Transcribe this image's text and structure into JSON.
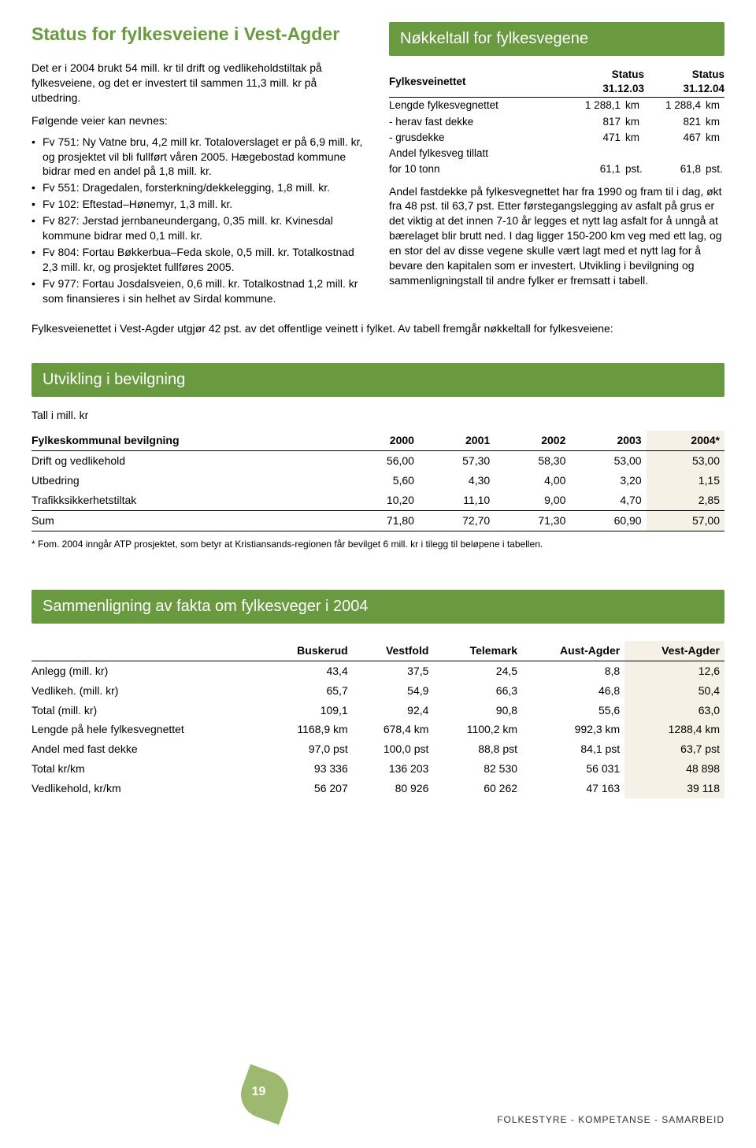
{
  "colors": {
    "accent": "#6a9a3f",
    "highlight": "#f5f1e6",
    "leaf": "#9cb96f"
  },
  "title": "Status for fylkesveiene i Vest-Agder",
  "intro": "Det er i 2004 brukt 54 mill. kr til drift og vedlikeholdstiltak på fylkesveiene, og det er investert til sammen 11,3 mill. kr på utbedring.",
  "lead_in": "Følgende veier kan nevnes:",
  "bullets": [
    "Fv 751: Ny Vatne bru, 4,2 mill kr. Totaloverslaget er på 6,9 mill. kr, og prosjektet vil bli fullført våren 2005. Hægebostad kommune bidrar med en andel på 1,8 mill. kr.",
    "Fv 551: Dragedalen, forsterkning/dekkelegging, 1,8 mill. kr.",
    "Fv 102: Eftestad–Hønemyr, 1,3 mill. kr.",
    "Fv 827: Jerstad jernbaneundergang, 0,35 mill. kr. Kvinesdal kommune bidrar med 0,1 mill. kr.",
    "Fv 804: Fortau Bøkkerbua–Feda skole, 0,5 mill. kr. Totalkostnad 2,3 mill. kr, og prosjektet fullføres 2005.",
    "Fv 977: Fortau Josdalsveien, 0,6 mill. kr. Totalkostnad 1,2 mill. kr som finansieres i sin helhet av Sirdal kommune."
  ],
  "after_bullets": "Fylkesveienettet i Vest-Agder utgjør 42 pst. av det offentlige veinett i fylket. Av tabell fremgår nøkkeltall for fylkesveiene:",
  "nokkel": {
    "title": "Nøkkeltall for fylkesvegene",
    "head": [
      "Fylkesveinettet",
      "Status 31.12.03",
      "Status 31.12.04"
    ],
    "rows": [
      {
        "label": "Lengde fylkesvegnettet",
        "v1": "1 288,1",
        "u1": "km",
        "v2": "1 288,4",
        "u2": "km"
      },
      {
        "label": "- herav fast dekke",
        "v1": "817",
        "u1": "km",
        "v2": "821",
        "u2": "km"
      },
      {
        "label": "- grusdekke",
        "v1": "471",
        "u1": "km",
        "v2": "467",
        "u2": "km"
      },
      {
        "label": "Andel fylkesveg tillatt",
        "v1": "",
        "u1": "",
        "v2": "",
        "u2": ""
      },
      {
        "label": "for 10 tonn",
        "v1": "61,1",
        "u1": "pst.",
        "v2": "61,8",
        "u2": "pst."
      }
    ],
    "para": "Andel fastdekke på fylkesvegnettet har fra 1990 og fram til i dag, økt fra 48 pst. til 63,7 pst. Etter førstegangslegging av asfalt på grus er det viktig at det innen 7-10 år legges et nytt lag asfalt for å unngå at bærelaget blir brutt ned. I dag ligger 150-200 km veg med ett lag, og en stor del av disse vegene skulle vært lagt med et nytt lag for å bevare den kapitalen som er investert. Utvikling i bevilgning og sammenligningstall til andre fylker er fremsatt i tabell."
  },
  "bevilgning": {
    "title": "Utvikling i bevilgning",
    "subtitle": "Tall i mill. kr",
    "columns": [
      "Fylkeskommunal bevilgning",
      "2000",
      "2001",
      "2002",
      "2003",
      "2004*"
    ],
    "rows": [
      [
        "Drift og vedlikehold",
        "56,00",
        "57,30",
        "58,30",
        "53,00",
        "53,00"
      ],
      [
        "Utbedring",
        "5,60",
        "4,30",
        "4,00",
        "3,20",
        "1,15"
      ],
      [
        "Trafikksikkerhetstiltak",
        "10,20",
        "11,10",
        "9,00",
        "4,70",
        "2,85"
      ],
      [
        "Sum",
        "71,80",
        "72,70",
        "71,30",
        "60,90",
        "57,00"
      ]
    ],
    "footnote": "* Fom. 2004 inngår ATP prosjektet, som betyr at Kristiansands-regionen får bevilget 6 mill. kr i tilegg til beløpene i tabellen."
  },
  "sammen": {
    "title": "Sammenligning av fakta om fylkesveger i 2004",
    "columns": [
      "",
      "Buskerud",
      "Vestfold",
      "Telemark",
      "Aust-Agder",
      "Vest-Agder"
    ],
    "rows": [
      [
        "Anlegg (mill. kr)",
        "43,4",
        "37,5",
        "24,5",
        "8,8",
        "12,6"
      ],
      [
        "Vedlikeh. (mill. kr)",
        "65,7",
        "54,9",
        "66,3",
        "46,8",
        "50,4"
      ],
      [
        "Total (mill. kr)",
        "109,1",
        "92,4",
        "90,8",
        "55,6",
        "63,0"
      ],
      [
        "Lengde på hele fylkesvegnettet",
        "1168,9 km",
        "678,4 km",
        "1100,2 km",
        "992,3 km",
        "1288,4 km"
      ],
      [
        "Andel med fast dekke",
        "97,0 pst",
        "100,0 pst",
        "88,8 pst",
        "84,1 pst",
        "63,7 pst"
      ],
      [
        "Total kr/km",
        "93 336",
        "136 203",
        "82 530",
        "56 031",
        "48 898"
      ],
      [
        "Vedlikehold, kr/km",
        "56 207",
        "80 926",
        "60 262",
        "47 163",
        "39 118"
      ]
    ]
  },
  "footer": {
    "page": "19",
    "text": "FOLKESTYRE - KOMPETANSE - SAMARBEID"
  }
}
